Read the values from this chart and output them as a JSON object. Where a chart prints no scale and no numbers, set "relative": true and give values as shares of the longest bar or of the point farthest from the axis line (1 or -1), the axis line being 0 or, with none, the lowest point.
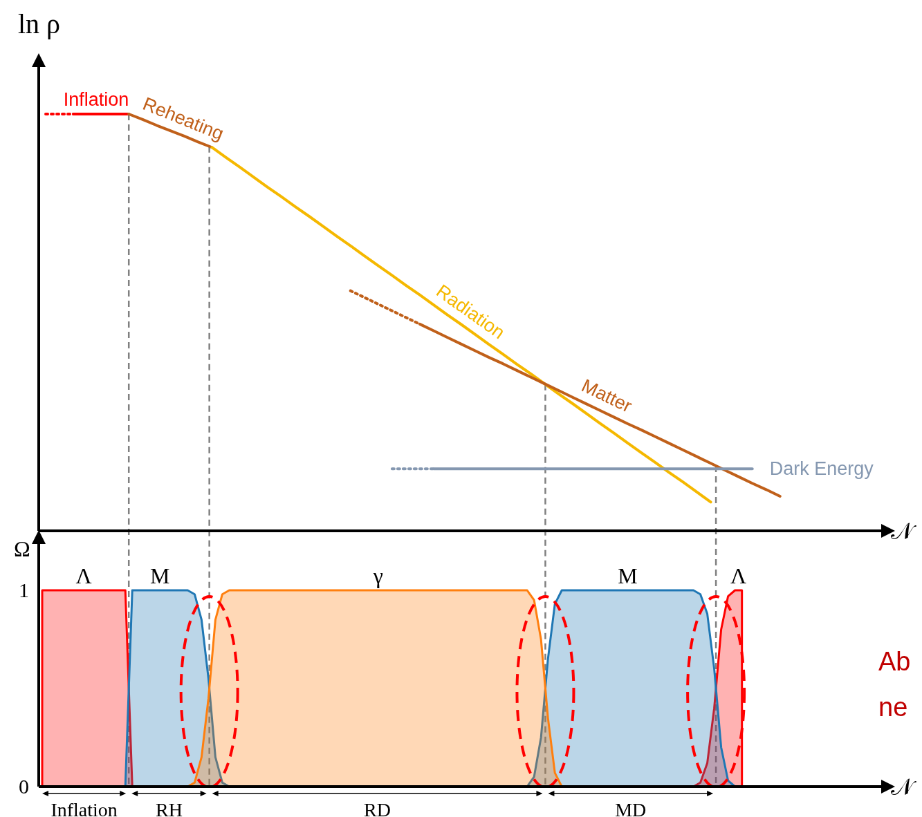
{
  "chart_data": [
    {
      "type": "line",
      "relative": true,
      "grid": "x",
      "ylabel": "ln ρ",
      "xlabel": "𝒩",
      "tick_labels": false,
      "categories": [
        null,
        null,
        null,
        null,
        null,
        null,
        null,
        null,
        null,
        null,
        null,
        null,
        null,
        null,
        null,
        null,
        null,
        null,
        null,
        null,
        null,
        null,
        null,
        null,
        null,
        null,
        null,
        null,
        null,
        null,
        null,
        null,
        null,
        null,
        null,
        null,
        null,
        null,
        null,
        null,
        null,
        null,
        null,
        null,
        null,
        null,
        null,
        null,
        null,
        null,
        null,
        null,
        null,
        null,
        null,
        null,
        null,
        null,
        null,
        null,
        null
      ],
      "series": [
        {
          "color": "#ff0000",
          "line_style": "dotted",
          "values": [
            1,
            1,
            1,
            null,
            null,
            null,
            null,
            null,
            null,
            null,
            null,
            null,
            null,
            null,
            null,
            null,
            null,
            null,
            null,
            null,
            null,
            null,
            null,
            null,
            null,
            null,
            null,
            null,
            null,
            null,
            null,
            null,
            null,
            null,
            null,
            null,
            null,
            null,
            null,
            null,
            null,
            null,
            null,
            null,
            null,
            null,
            null,
            null,
            null,
            null,
            null,
            null,
            null,
            null,
            null,
            null,
            null,
            null,
            null,
            null,
            null
          ]
        },
        {
          "name": "Inflation",
          "color": "#ff0000",
          "values": [
            null,
            null,
            1,
            1,
            1,
            1,
            1,
            null,
            null,
            null,
            null,
            null,
            null,
            null,
            null,
            null,
            null,
            null,
            null,
            null,
            null,
            null,
            null,
            null,
            null,
            null,
            null,
            null,
            null,
            null,
            null,
            null,
            null,
            null,
            null,
            null,
            null,
            null,
            null,
            null,
            null,
            null,
            null,
            null,
            null,
            null,
            null,
            null,
            null,
            null,
            null,
            null,
            null,
            null,
            null,
            null,
            null,
            null,
            null,
            null,
            null
          ]
        },
        {
          "name": "Reheating",
          "color": "#c0601a",
          "values": [
            null,
            null,
            null,
            null,
            null,
            null,
            1,
            0.987,
            0.973,
            0.96,
            0.947,
            0.933,
            0.92,
            null,
            null,
            null,
            null,
            null,
            null,
            null,
            null,
            null,
            null,
            null,
            null,
            null,
            null,
            null,
            null,
            null,
            null,
            null,
            null,
            null,
            null,
            null,
            null,
            null,
            null,
            null,
            null,
            null,
            null,
            null,
            null,
            null,
            null,
            null,
            null,
            null,
            null,
            null,
            null,
            null,
            null,
            null,
            null,
            null,
            null,
            null,
            null
          ]
        },
        {
          "name": "Radiation",
          "color": "#f5b800",
          "values": [
            null,
            null,
            null,
            null,
            null,
            null,
            null,
            null,
            null,
            null,
            null,
            null,
            0.92,
            0.896,
            0.873,
            0.849,
            0.825,
            0.802,
            0.778,
            0.755,
            0.731,
            0.707,
            0.684,
            0.66,
            0.636,
            0.613,
            0.589,
            0.566,
            0.542,
            0.518,
            0.495,
            0.471,
            0.447,
            0.424,
            0.4,
            0.377,
            0.353,
            0.329,
            0.306,
            0.282,
            0.258,
            0.235,
            0.211,
            0.187,
            0.164,
            0.14,
            0.117,
            0.093,
            0.069,
            null,
            null,
            null,
            null,
            null,
            null,
            null,
            null,
            null,
            null,
            null,
            null
          ]
        },
        {
          "color": "#c0601a",
          "line_style": "dotted",
          "values": [
            null,
            null,
            null,
            null,
            null,
            null,
            null,
            null,
            null,
            null,
            null,
            null,
            null,
            null,
            null,
            null,
            null,
            null,
            null,
            null,
            null,
            null,
            0.576,
            0.56,
            0.544,
            0.528,
            0.512,
            0.496,
            null,
            null,
            null,
            null,
            null,
            null,
            null,
            null,
            null,
            null,
            null,
            null,
            null,
            null,
            null,
            null,
            null,
            null,
            null,
            null,
            null,
            null,
            null,
            null,
            null,
            null,
            null,
            null,
            null,
            null,
            null,
            null,
            null
          ]
        },
        {
          "name": "Matter",
          "color": "#c0601a",
          "values": [
            null,
            null,
            null,
            null,
            null,
            null,
            null,
            null,
            null,
            null,
            null,
            null,
            null,
            null,
            null,
            null,
            null,
            null,
            null,
            null,
            null,
            null,
            null,
            null,
            null,
            null,
            null,
            0.496,
            0.48,
            0.464,
            0.448,
            0.432,
            0.416,
            0.401,
            0.385,
            0.369,
            0.353,
            0.337,
            0.321,
            0.305,
            0.289,
            0.273,
            0.257,
            0.242,
            0.226,
            0.21,
            0.194,
            0.178,
            0.162,
            0.146,
            0.13,
            0.114,
            0.099,
            0.083,
            null,
            null,
            null,
            null,
            null,
            null,
            null
          ]
        },
        {
          "color": "#8497b0",
          "line_style": "dotted",
          "values": [
            null,
            null,
            null,
            null,
            null,
            null,
            null,
            null,
            null,
            null,
            null,
            null,
            null,
            null,
            null,
            null,
            null,
            null,
            null,
            null,
            null,
            null,
            null,
            null,
            null,
            0.149,
            0.149,
            0.149,
            0.149,
            null,
            null,
            null,
            null,
            null,
            null,
            null,
            null,
            null,
            null,
            null,
            null,
            null,
            null,
            null,
            null,
            null,
            null,
            null,
            null,
            null,
            null,
            null,
            null,
            null,
            null,
            null,
            null,
            null,
            null,
            null,
            null
          ]
        },
        {
          "name": "Dark Energy",
          "color": "#8497b0",
          "values": [
            null,
            null,
            null,
            null,
            null,
            null,
            null,
            null,
            null,
            null,
            null,
            null,
            null,
            null,
            null,
            null,
            null,
            null,
            null,
            null,
            null,
            null,
            null,
            null,
            null,
            null,
            null,
            null,
            0.149,
            0.149,
            0.149,
            0.149,
            0.149,
            0.149,
            0.149,
            0.149,
            0.149,
            0.149,
            0.149,
            0.149,
            0.149,
            0.149,
            0.149,
            0.149,
            0.149,
            0.149,
            0.149,
            0.149,
            0.149,
            0.149,
            0.149,
            0.149,
            null,
            null,
            null,
            null,
            null,
            null,
            null,
            null,
            null
          ]
        }
      ]
    },
    {
      "type": "area",
      "stacked": false,
      "ylabel": "Ω",
      "xlabel": "𝒩",
      "ylim": [
        0,
        1.25
      ],
      "yticks": [
        0,
        1
      ],
      "tick_labels": "y",
      "categories": [
        null,
        null,
        null,
        null,
        null,
        null,
        null,
        null,
        null,
        null,
        null,
        null,
        null,
        null,
        null,
        null,
        null,
        null,
        null,
        null,
        null,
        null,
        null,
        null,
        null,
        null,
        null,
        null,
        null,
        null,
        null,
        null,
        null,
        null,
        null,
        null,
        null,
        null,
        null,
        null,
        null,
        null,
        null,
        null,
        null,
        null,
        null,
        null,
        null,
        null,
        null,
        null,
        null,
        null,
        null,
        null,
        null,
        null,
        null,
        null,
        null,
        null,
        null,
        null,
        null,
        null,
        null,
        null,
        null,
        null,
        null,
        null,
        null,
        null,
        null,
        null,
        null,
        null,
        null,
        null,
        null,
        null,
        null,
        null,
        null,
        null,
        null,
        null,
        null,
        null,
        null,
        null,
        null,
        null,
        null,
        null,
        null,
        null,
        null,
        null,
        null,
        null,
        null,
        null,
        null,
        null,
        null,
        null,
        null,
        null,
        null,
        null,
        null,
        null,
        null,
        null,
        null,
        null,
        null,
        null,
        null,
        null
      ],
      "series": [
        {
          "name": "Λ",
          "color": "#ff0000",
          "values": [
            1,
            1,
            1,
            1,
            1,
            1,
            1,
            1,
            1,
            1,
            1,
            1,
            1,
            0,
            null,
            null,
            null,
            null,
            null,
            null,
            null,
            null,
            null,
            null,
            null,
            null,
            null,
            null,
            null,
            null,
            null,
            null,
            null,
            null,
            null,
            null,
            null,
            null,
            null,
            null,
            null,
            null,
            null,
            null,
            null,
            null,
            null,
            null,
            null,
            null,
            null,
            null,
            null,
            null,
            null,
            null,
            null,
            null,
            null,
            null,
            null,
            null,
            null,
            null,
            null,
            null,
            null,
            null,
            null,
            null,
            null,
            null,
            null,
            null,
            null,
            null,
            null,
            null,
            null,
            null,
            null,
            null,
            null,
            null,
            null,
            null,
            null,
            null,
            null,
            null,
            null,
            null,
            null,
            null,
            0,
            0.02,
            0.12,
            0.4,
            0.8,
            0.97,
            1,
            1,
            null,
            null,
            null,
            null,
            null,
            null,
            null,
            null,
            null,
            null,
            null,
            null,
            null,
            null,
            null,
            null,
            null,
            null,
            null,
            null
          ]
        },
        {
          "name": "M",
          "color": "#1f77b4",
          "values": [
            null,
            null,
            null,
            null,
            null,
            null,
            null,
            null,
            null,
            null,
            null,
            null,
            0,
            1,
            1,
            1,
            1,
            1,
            1,
            1,
            1,
            1,
            0.98,
            0.85,
            0.55,
            0.15,
            0.02,
            0,
            null,
            null,
            null,
            null,
            null,
            null,
            null,
            null,
            null,
            null,
            null,
            null,
            null,
            null,
            null,
            null,
            null,
            null,
            null,
            null,
            null,
            null,
            null,
            null,
            null,
            null,
            null,
            null,
            null,
            null,
            null,
            null,
            null,
            null,
            null,
            null,
            null,
            null,
            null,
            null,
            null,
            null,
            0,
            0.05,
            0.25,
            0.65,
            0.93,
            1,
            1,
            1,
            1,
            1,
            1,
            1,
            1,
            1,
            1,
            1,
            1,
            1,
            1,
            1,
            1,
            1,
            1,
            1,
            1,
            0.98,
            0.88,
            0.6,
            0.2,
            0.03,
            0,
            null,
            null,
            null,
            null,
            null,
            null,
            null,
            null,
            null,
            null,
            null,
            null,
            null,
            null,
            null,
            null,
            null,
            null,
            null,
            null,
            null
          ]
        },
        {
          "name": "γ",
          "color": "#ff7f0e",
          "values": [
            null,
            null,
            null,
            null,
            null,
            null,
            null,
            null,
            null,
            null,
            null,
            null,
            null,
            null,
            null,
            null,
            null,
            null,
            null,
            null,
            null,
            0,
            0.02,
            0.15,
            0.45,
            0.85,
            0.98,
            1,
            1,
            1,
            1,
            1,
            1,
            1,
            1,
            1,
            1,
            1,
            1,
            1,
            1,
            1,
            1,
            1,
            1,
            1,
            1,
            1,
            1,
            1,
            1,
            1,
            1,
            1,
            1,
            1,
            1,
            1,
            1,
            1,
            1,
            1,
            1,
            1,
            1,
            1,
            1,
            1,
            1,
            1,
            1,
            0.95,
            0.75,
            0.35,
            0.07,
            0,
            null,
            null,
            null,
            null,
            null,
            null,
            null,
            null,
            null,
            null,
            null,
            null,
            null,
            null,
            null,
            null,
            null,
            null,
            null,
            null,
            null,
            null,
            null,
            null,
            null,
            null,
            null,
            null,
            null,
            null,
            null,
            null,
            null,
            null,
            null,
            null,
            null,
            null,
            null,
            null,
            null,
            null,
            null,
            null,
            null,
            null
          ]
        }
      ],
      "annotations": [
        "Inflation",
        "RH",
        "RD",
        "MD",
        "Ab",
        "ne"
      ]
    }
  ]
}
